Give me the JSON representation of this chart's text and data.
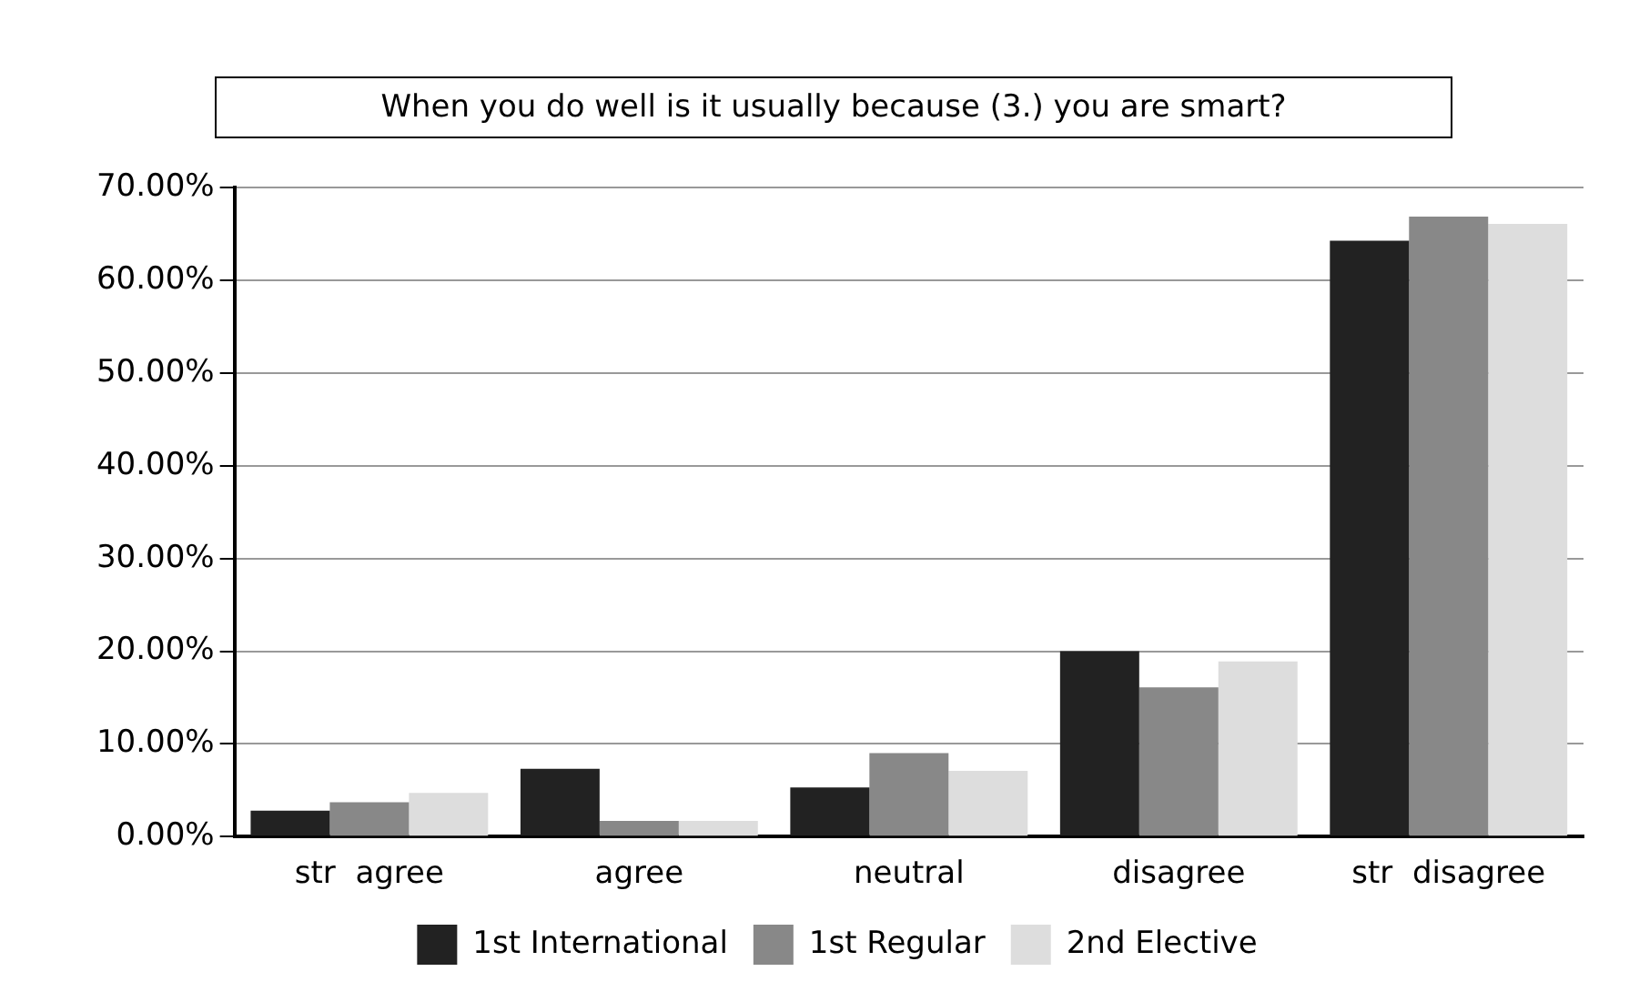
{
  "chart_data": {
    "type": "bar",
    "title": "When you do well is it usually because (3.) you are smart?",
    "categories": [
      "str  agree",
      "agree",
      "neutral",
      "disagree",
      "str  disagree"
    ],
    "series": [
      {
        "name": "1st International",
        "color": "#222222",
        "values": [
          2.8,
          7.3,
          5.3,
          20.0,
          64.3
        ]
      },
      {
        "name": "1st Regular",
        "color": "#888888",
        "values": [
          3.7,
          1.7,
          9.0,
          16.1,
          66.9
        ]
      },
      {
        "name": "2nd Elective",
        "color": "#dddddd",
        "values": [
          4.7,
          1.7,
          7.1,
          18.9,
          66.1
        ]
      }
    ],
    "ylim": [
      0,
      70
    ],
    "yticks": [
      {
        "value": 0,
        "label": "0.00%"
      },
      {
        "value": 10,
        "label": "10.00%"
      },
      {
        "value": 20,
        "label": "20.00%"
      },
      {
        "value": 30,
        "label": "30.00%"
      },
      {
        "value": 40,
        "label": "40.00%"
      },
      {
        "value": 50,
        "label": "50.00%"
      },
      {
        "value": 60,
        "label": "60.00%"
      },
      {
        "value": 70,
        "label": "70.00%"
      }
    ],
    "grid": "y",
    "legend": "bottom"
  }
}
